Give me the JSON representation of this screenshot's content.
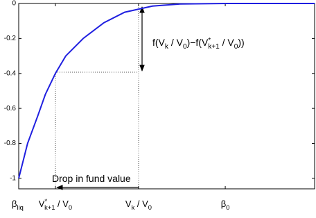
{
  "chart_data": {
    "type": "line",
    "x": [
      0,
      0.015,
      0.03,
      0.065,
      0.09,
      0.124,
      0.159,
      0.218,
      0.288,
      0.358,
      0.452,
      0.545,
      0.7,
      1
    ],
    "values": [
      -1,
      -0.9,
      -0.8,
      -0.64,
      -0.52,
      -0.4,
      -0.3,
      -0.2,
      -0.11,
      -0.05,
      -0.015,
      -0.003,
      0,
      0
    ],
    "color": "#1f1fe0",
    "xlim": [
      0,
      1
    ],
    "ylim": [
      -1.06,
      0
    ],
    "yticks": [
      -1,
      -0.8,
      -0.6,
      -0.4,
      -0.2,
      0
    ],
    "xticks": [
      {
        "value": 0,
        "label": [
          {
            "text": "β"
          },
          {
            "text": "liq",
            "shift": "sub"
          }
        ]
      },
      {
        "value": 0.124,
        "label": [
          {
            "text": "V"
          },
          {
            "text": "*",
            "shift": "sup"
          },
          {
            "text": "k+1",
            "shift": "sub"
          },
          {
            "text": " / V"
          },
          {
            "text": "0",
            "shift": "sub"
          }
        ]
      },
      {
        "value": 0.405,
        "label": [
          {
            "text": "V"
          },
          {
            "text": "k",
            "shift": "sub"
          },
          {
            "text": " / V"
          },
          {
            "text": "0",
            "shift": "sub"
          }
        ]
      },
      {
        "value": 0.698,
        "label": [
          {
            "text": "β"
          },
          {
            "text": "0",
            "shift": "sub"
          }
        ]
      }
    ],
    "annotations": [
      {
        "text": [
          {
            "text": "f(V"
          },
          {
            "text": "k",
            "shift": "sub"
          },
          {
            "text": " / V"
          },
          {
            "text": "0",
            "shift": "sub"
          },
          {
            "text": ")−f(V"
          },
          {
            "text": "*",
            "shift": "sup"
          },
          {
            "text": "k+1",
            "shift": "sub"
          },
          {
            "text": " / V"
          },
          {
            "text": "0",
            "shift": "sub"
          },
          {
            "text": "))"
          }
        ]
      },
      {
        "text": "Drop in fund value"
      }
    ]
  }
}
